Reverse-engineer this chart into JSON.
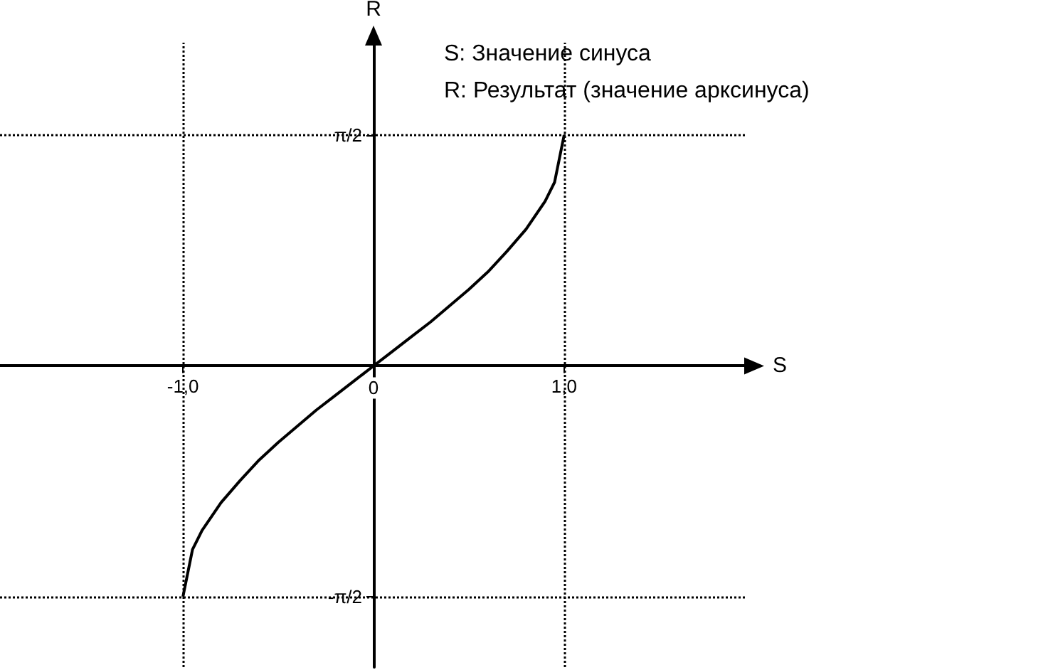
{
  "chart_data": {
    "type": "line",
    "xlabel": "S",
    "ylabel": "R",
    "annotations": [
      "S: Значение синуса",
      "R: Результат (значение арксинуса)"
    ],
    "x": [
      -1,
      -0.95,
      -0.9,
      -0.8,
      -0.7,
      -0.6,
      -0.5,
      -0.4,
      -0.3,
      -0.2,
      -0.1,
      0,
      0.1,
      0.2,
      0.3,
      0.4,
      0.5,
      0.6,
      0.7,
      0.8,
      0.9,
      0.95,
      1
    ],
    "series": [
      {
        "color": "#000000",
        "values": [
          -1.57,
          -1.25,
          -1.12,
          -0.93,
          -0.78,
          -0.64,
          -0.52,
          -0.41,
          -0.3,
          -0.2,
          -0.1,
          0,
          0.1,
          0.2,
          0.3,
          0.41,
          0.52,
          0.64,
          0.78,
          0.93,
          1.12,
          1.25,
          1.57
        ]
      }
    ],
    "xlim": [
      -1.96,
      1.96
    ],
    "ylim": [
      -2.05,
      2.2
    ],
    "xticks": [
      {
        "value": -1,
        "label": "-1,0"
      },
      {
        "value": 0,
        "label": "0"
      },
      {
        "value": 1,
        "label": "1,0"
      }
    ],
    "yticks": [
      {
        "value": -1.5708,
        "label": "-π/2"
      },
      {
        "value": 1.5708,
        "label": "π/2"
      }
    ],
    "ref_lines": [
      {
        "axis": "x",
        "value": -1,
        "line_style": "dotted",
        "color": "#000000"
      },
      {
        "axis": "x",
        "value": 1,
        "line_style": "dotted",
        "color": "#000000"
      },
      {
        "axis": "y",
        "value": 1.5708,
        "line_style": "dotted",
        "color": "#000000"
      },
      {
        "axis": "y",
        "value": -1.5708,
        "line_style": "dotted",
        "color": "#000000"
      }
    ],
    "grid": false,
    "marker": "none",
    "line_style": "solid"
  }
}
